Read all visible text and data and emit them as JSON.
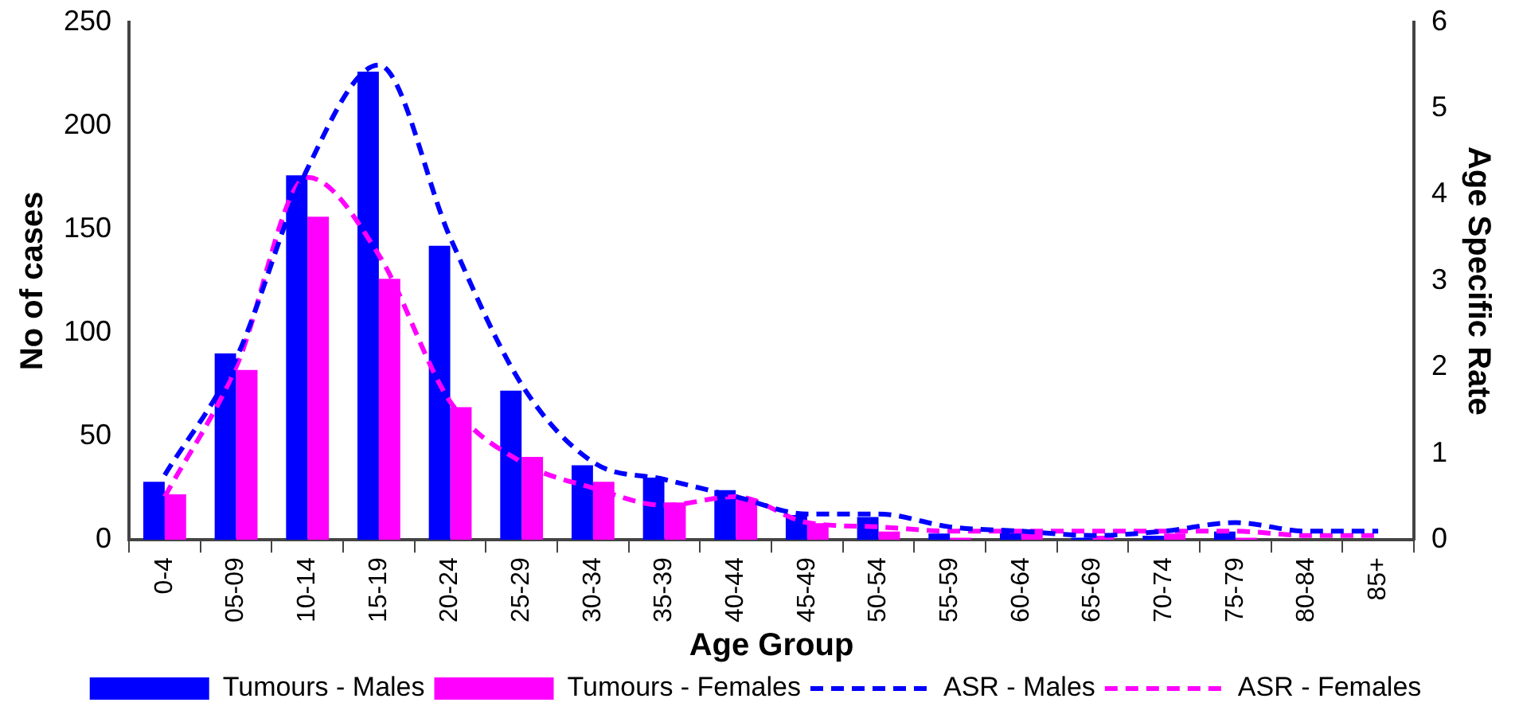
{
  "chart_data": {
    "type": "bar",
    "xlabel": "Age Group",
    "ylabel": "No of cases",
    "y2label": "Age Specific Rate",
    "categories": [
      "0-4",
      "05-09",
      "10-14",
      "15-19",
      "20-24",
      "25-29",
      "30-34",
      "35-39",
      "40-44",
      "45-49",
      "50-54",
      "55-59",
      "60-64",
      "65-69",
      "70-74",
      "75-79",
      "80-84",
      "85+"
    ],
    "series": [
      {
        "name": "Tumours - Males",
        "color": "#0000ff",
        "values": [
          28,
          90,
          176,
          226,
          142,
          72,
          36,
          30,
          24,
          12,
          11,
          3,
          4,
          1,
          2,
          4,
          0,
          0
        ]
      },
      {
        "name": "Tumours - Females",
        "color": "#ff00ff",
        "values": [
          22,
          82,
          156,
          126,
          64,
          40,
          28,
          18,
          20,
          8,
          4,
          1,
          4,
          2,
          3,
          1,
          0,
          0
        ]
      },
      {
        "name": "ASR - Males",
        "type": "line",
        "axis": "y2",
        "color": "#0000ff",
        "line_style": "dashed",
        "values": [
          0.75,
          2.1,
          4.3,
          5.5,
          3.5,
          1.8,
          0.9,
          0.7,
          0.5,
          0.3,
          0.3,
          0.15,
          0.1,
          0.05,
          0.1,
          0.2,
          0.1,
          0.1
        ]
      },
      {
        "name": "ASR - Females",
        "type": "line",
        "axis": "y2",
        "color": "#ff00ff",
        "line_style": "dashed",
        "values": [
          0.5,
          2.0,
          4.2,
          3.3,
          1.6,
          0.9,
          0.6,
          0.4,
          0.5,
          0.2,
          0.15,
          0.1,
          0.1,
          0.1,
          0.1,
          0.1,
          0.05,
          0.05
        ]
      }
    ],
    "ylim": [
      0,
      250
    ],
    "yticks": [
      0,
      50,
      100,
      150,
      200,
      250
    ],
    "y2lim": [
      0,
      6
    ],
    "y2ticks": [
      0,
      1,
      2,
      3,
      4,
      5,
      6
    ],
    "marker": "none",
    "legend": "bottom",
    "grid": false
  }
}
